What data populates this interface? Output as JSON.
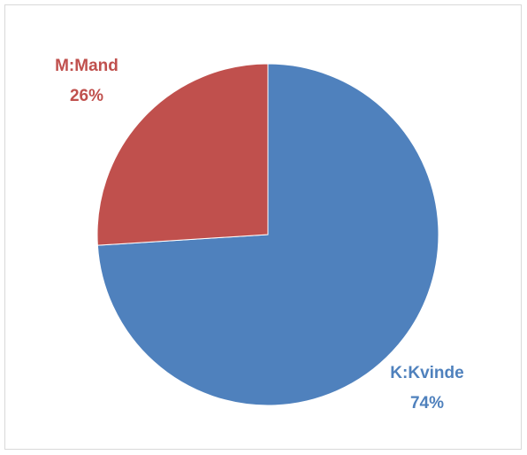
{
  "chart_data": {
    "type": "pie",
    "categories": [
      "K:Kvinde",
      "M:Mand"
    ],
    "values": [
      74,
      26
    ],
    "value_labels": [
      "74%",
      "26%"
    ],
    "colors": [
      "#4f81bd",
      "#c0504d"
    ]
  }
}
